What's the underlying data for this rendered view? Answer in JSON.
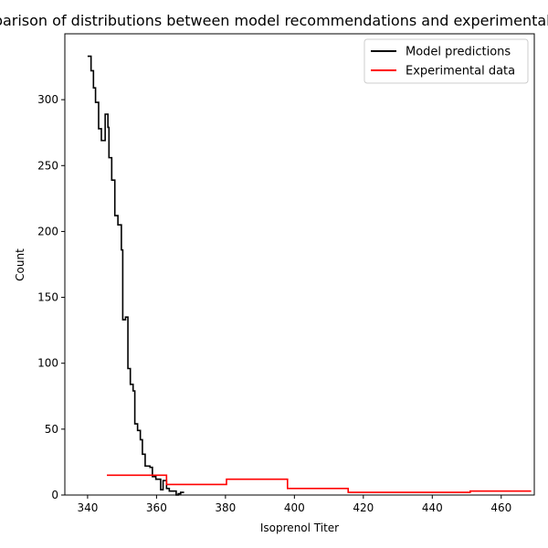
{
  "chart_data": {
    "type": "line",
    "title": "Comparison of distributions between model recommendations and experimental data",
    "xlabel": "Isoprenol Titer",
    "ylabel": "Count",
    "xlim": [
      333.4,
      469.6
    ],
    "ylim": [
      0,
      350
    ],
    "xticks": [
      340,
      360,
      380,
      400,
      420,
      440,
      460
    ],
    "yticks": [
      0,
      50,
      100,
      150,
      200,
      250,
      300
    ],
    "grid": false,
    "legend_position": "top-right",
    "series": [
      {
        "name": "Model predictions",
        "color": "#000000",
        "drawstyle": "steps",
        "x": [
          340.0,
          341.0,
          341.7,
          342.3,
          343.2,
          344.0,
          345.1,
          345.9,
          346.2,
          347.0,
          347.9,
          348.8,
          349.8,
          350.2,
          351.0,
          351.7,
          352.4,
          353.2,
          353.7,
          354.5,
          355.3,
          355.9,
          356.7,
          358.1,
          358.8,
          359.8,
          361.2,
          361.9,
          362.9,
          363.7,
          364.7,
          365.7,
          366.3,
          367.0,
          368.0
        ],
        "y": [
          333,
          322,
          309,
          298,
          278,
          269,
          289,
          279,
          256,
          239,
          212,
          205,
          186,
          133,
          135,
          96,
          84,
          79,
          54,
          49,
          42,
          31,
          22,
          21,
          14,
          12,
          4,
          11,
          5,
          3,
          3,
          0,
          1,
          2,
          2
        ]
      },
      {
        "name": "Experimental data",
        "color": "#ff0000",
        "drawstyle": "steps",
        "x": [
          345.6,
          362.9,
          380.3,
          398.0,
          415.6,
          433.3,
          451.0,
          468.7
        ],
        "y": [
          15,
          8,
          12,
          5,
          2,
          2,
          3,
          3
        ]
      }
    ]
  }
}
